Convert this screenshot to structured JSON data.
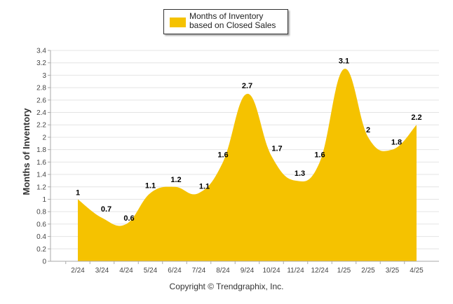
{
  "chart_data": {
    "type": "area",
    "categories": [
      "2/24",
      "3/24",
      "4/24",
      "5/24",
      "6/24",
      "7/24",
      "8/24",
      "9/24",
      "10/24",
      "11/24",
      "12/24",
      "1/25",
      "2/25",
      "3/25",
      "4/25"
    ],
    "series": [
      {
        "name": "Months of Inventory based on Closed Sales",
        "values": [
          1,
          0.7,
          0.6,
          1.1,
          1.2,
          1.1,
          1.6,
          2.7,
          1.7,
          1.3,
          1.6,
          3.1,
          2,
          1.8,
          2.2
        ],
        "data_labels": [
          "1",
          "0.7",
          "0.6",
          "1.1",
          "1.2",
          "1.1",
          "1.6",
          "2.7",
          "1.7",
          "1.3",
          "1.6",
          "3.1",
          "2",
          "1.8",
          "2.2"
        ]
      }
    ],
    "ylabel": "Months of Inventory",
    "xlabel": "",
    "ylim": [
      0,
      3.4
    ],
    "y_ticks": [
      "0",
      "0.2",
      "0.4",
      "0.6",
      "0.8",
      "1",
      "1.2",
      "1.4",
      "1.6",
      "1.8",
      "2",
      "2.2",
      "2.4",
      "2.6",
      "2.8",
      "3",
      "3.2",
      "3.4"
    ],
    "grid": true,
    "legend_position": "top-center",
    "colors": {
      "fill": "#F5C200",
      "grid": "#e4e4e4",
      "axis": "#aaaaaa"
    }
  },
  "legend": {
    "label": "Months of Inventory based on Closed Sales"
  },
  "footer": {
    "copyright": "Copyright © Trendgraphix, Inc."
  }
}
